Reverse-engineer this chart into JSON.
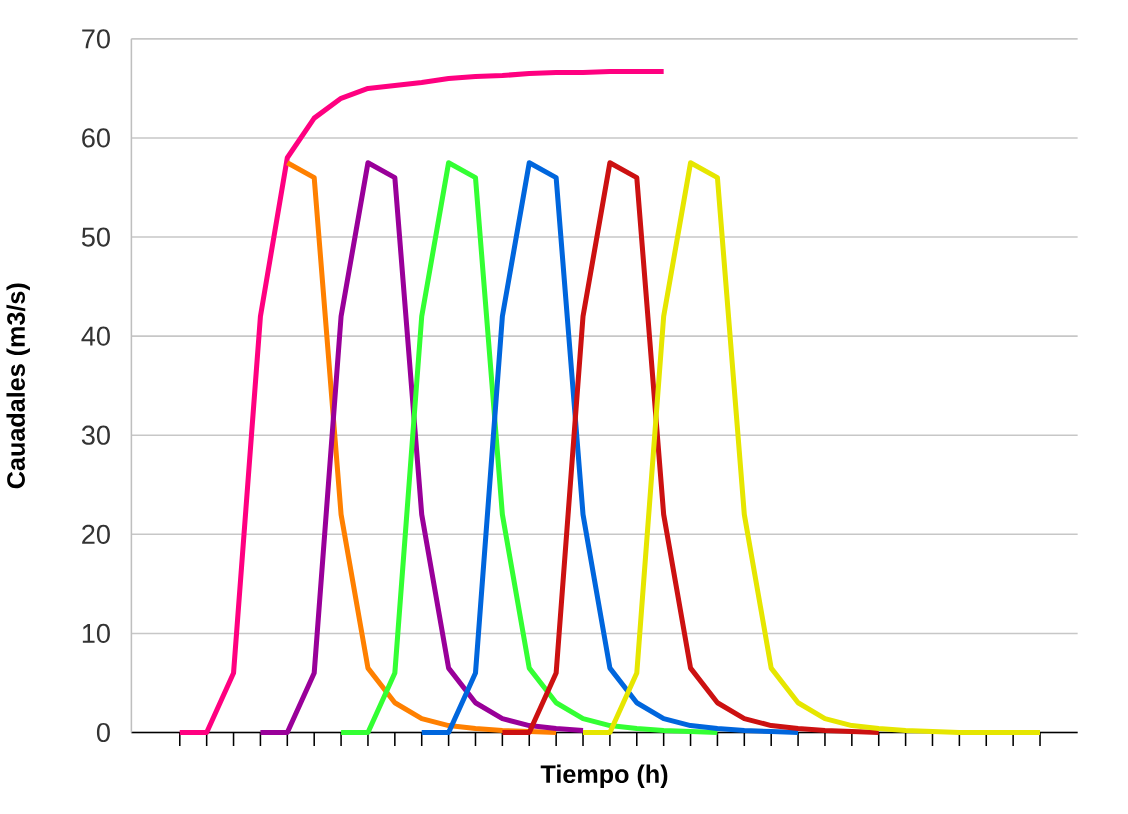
{
  "chart_data": {
    "type": "line",
    "xlabel": "Tiempo (h)",
    "ylabel": "Cauadales (m3/s)",
    "categories": [
      null,
      null,
      null,
      null,
      null,
      null,
      null,
      null,
      null,
      null,
      null,
      null,
      null,
      null,
      null,
      null,
      null,
      null,
      null,
      null,
      null,
      null,
      null,
      null,
      null,
      null,
      null,
      null,
      null,
      null,
      null,
      null,
      null
    ],
    "series": [
      {
        "color": "#ff0080",
        "values": [
          0,
          0,
          6,
          42,
          58,
          62,
          64,
          65,
          65.3,
          65.6,
          66,
          66.2,
          66.3,
          66.5,
          66.6,
          66.6,
          66.7,
          66.7,
          66.7,
          null,
          null,
          null,
          null,
          null,
          null,
          null,
          null,
          null,
          null,
          null,
          null,
          null,
          null
        ]
      },
      {
        "color": "#ff8000",
        "values": [
          null,
          null,
          null,
          null,
          57.5,
          56,
          22,
          6.5,
          3,
          1.4,
          0.7,
          0.4,
          0.2,
          0.1,
          0,
          null,
          null,
          null,
          null,
          null,
          null,
          null,
          null,
          null,
          null,
          null,
          null,
          null,
          null,
          null,
          null,
          null,
          null
        ]
      },
      {
        "color": "#990099",
        "values": [
          null,
          null,
          null,
          0,
          0,
          6,
          42,
          57.5,
          56,
          22,
          6.5,
          3,
          1.4,
          0.7,
          0.4,
          0.2,
          null,
          null,
          null,
          null,
          null,
          null,
          null,
          null,
          null,
          null,
          null,
          null,
          null,
          null,
          null,
          null,
          null
        ]
      },
      {
        "color": "#33ff33",
        "values": [
          null,
          null,
          null,
          null,
          null,
          null,
          0,
          0,
          6,
          42,
          57.5,
          56,
          22,
          6.5,
          3,
          1.4,
          0.7,
          0.4,
          0.2,
          0.1,
          0,
          null,
          null,
          null,
          null,
          null,
          null,
          null,
          null,
          null,
          null,
          null,
          null
        ]
      },
      {
        "color": "#0066dd",
        "values": [
          null,
          null,
          null,
          null,
          null,
          null,
          null,
          null,
          null,
          0,
          0,
          6,
          42,
          57.5,
          56,
          22,
          6.5,
          3,
          1.4,
          0.7,
          0.4,
          0.2,
          0.1,
          0,
          null,
          null,
          null,
          null,
          null,
          null,
          null,
          null,
          null
        ]
      },
      {
        "color": "#cc1111",
        "values": [
          null,
          null,
          null,
          null,
          null,
          null,
          null,
          null,
          null,
          null,
          null,
          null,
          0,
          0,
          6,
          42,
          57.5,
          56,
          22,
          6.5,
          3,
          1.4,
          0.7,
          0.4,
          0.2,
          0.1,
          0,
          null,
          null,
          null,
          null,
          null,
          null
        ]
      },
      {
        "color": "#e6e600",
        "values": [
          null,
          null,
          null,
          null,
          null,
          null,
          null,
          null,
          null,
          null,
          null,
          null,
          null,
          null,
          null,
          0,
          0,
          6,
          42,
          57.5,
          56,
          22,
          6.5,
          3,
          1.4,
          0.7,
          0.4,
          0.2,
          0.1,
          0,
          0,
          0,
          0
        ]
      }
    ],
    "ylim": [
      0,
      70
    ],
    "yticks": [
      0,
      10,
      20,
      30,
      40,
      50,
      60,
      70
    ],
    "grid": "y",
    "tick_labels": "y"
  }
}
